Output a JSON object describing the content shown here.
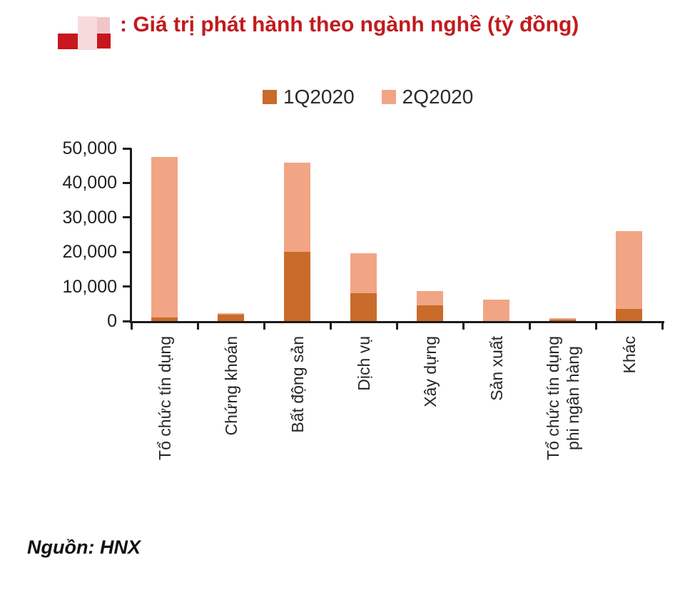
{
  "header": {
    "title": ": Giá trị phát hành theo ngành nghề (tỷ đồng)",
    "title_color": "#C11B1E",
    "redacted_logo_colors": {
      "red": "#C8161E",
      "pink_light": "#F6DBDD",
      "pink_mid": "#F0C6C9"
    }
  },
  "chart_data": {
    "type": "bar",
    "stacked": true,
    "title": "Giá trị phát hành theo ngành nghề (tỷ đồng)",
    "unit": "tỷ đồng",
    "categories": [
      "Tổ chức tín dụng",
      "Chứng khoán",
      "Bất động sản",
      "Dịch vụ",
      "Xây dựng",
      "Sản xuất",
      "Tổ chức tín dụng phi ngân hàng",
      "Khác"
    ],
    "category_label_lines": [
      [
        "Tổ chức tín dụng"
      ],
      [
        "Chứng khoán"
      ],
      [
        "Bất động sản"
      ],
      [
        "Dịch vụ"
      ],
      [
        "Xây dựng"
      ],
      [
        "Sản xuất"
      ],
      [
        "Tổ chức tín dụng",
        "phi ngân hàng"
      ],
      [
        "Khác"
      ]
    ],
    "series": [
      {
        "name": "1Q2020",
        "color": "#C96B2A",
        "values": [
          1000,
          1800,
          20000,
          8000,
          4600,
          0,
          400,
          3500
        ]
      },
      {
        "name": "2Q2020",
        "color": "#F1A585",
        "values": [
          46500,
          500,
          25900,
          11700,
          4100,
          6200,
          400,
          22600
        ]
      }
    ],
    "ylim": [
      0,
      50000
    ],
    "yticks": [
      0,
      10000,
      20000,
      30000,
      40000,
      50000
    ],
    "ytick_labels": [
      "0",
      "10,000",
      "20,000",
      "30,000",
      "40,000",
      "50,000"
    ],
    "grid": false,
    "legend_position": "top",
    "axis_color": "#1a1a1a"
  },
  "footer": {
    "source": "Nguồn: HNX"
  }
}
